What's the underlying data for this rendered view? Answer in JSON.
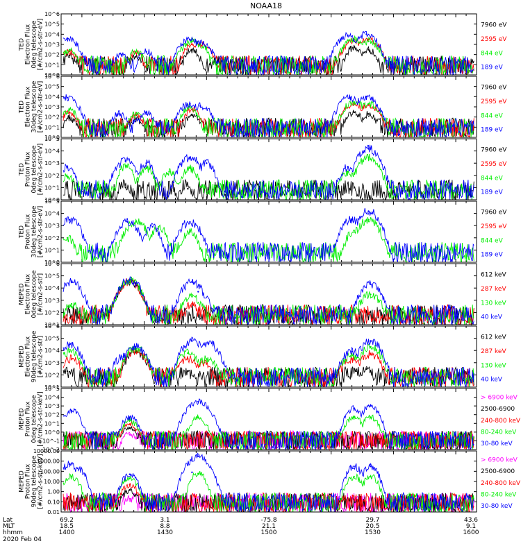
{
  "title": "NOAA18",
  "colors": {
    "black": "#000000",
    "blue": "#0000ff",
    "green": "#00ee00",
    "red": "#ff0000",
    "magenta": "#ff00ff"
  },
  "footer": {
    "date": "2020 Feb 04",
    "row_labels": [
      "Lat",
      "MLT",
      "hhmm"
    ],
    "columns": [
      {
        "lat": "69.2",
        "mlt": "18.5",
        "hhmm": "1400"
      },
      {
        "lat": "3.1",
        "mlt": "8.8",
        "hhmm": "1430"
      },
      {
        "lat": "-75.8",
        "mlt": "21.1",
        "hhmm": "1500"
      },
      {
        "lat": "29.7",
        "mlt": "20.5",
        "hhmm": "1530"
      },
      {
        "lat": "43.6",
        "mlt": "9.1",
        "hhmm": "1600"
      }
    ]
  },
  "chart_data": [
    {
      "type": "line",
      "ylabel": [
        "TED",
        "Electron Flux",
        "0deg telescope",
        "[#/cm2-s-str-eV]"
      ],
      "yscale": "log",
      "ylim": [
        1,
        1000000
      ],
      "tick_labels": [
        "10^6",
        "10^5",
        "10^4",
        "10^3",
        "10^2",
        "10^1",
        "10^0"
      ],
      "legend": [
        {
          "text": "7960 eV",
          "color": "black"
        },
        {
          "text": "2595 eV",
          "color": "red"
        },
        {
          "text": "844 eV",
          "color": "green"
        },
        {
          "text": "189 eV",
          "color": "blue"
        }
      ],
      "series": [
        {
          "name": "189 eV",
          "color": "blue",
          "peaks": [
            [
              1403,
              4000
            ],
            [
              1429,
              100
            ],
            [
              1441,
              200
            ],
            [
              1462,
              3000
            ],
            [
              1467,
              1500
            ],
            [
              1538,
              8000
            ],
            [
              1547,
              10000
            ]
          ]
        },
        {
          "name": "844 eV",
          "color": "green",
          "peaks": [
            [
              1404,
              300
            ],
            [
              1436,
              200
            ],
            [
              1463,
              2000
            ],
            [
              1467,
              1000
            ],
            [
              1541,
              3000
            ],
            [
              1548,
              2000
            ]
          ]
        },
        {
          "name": "2595 eV",
          "color": "red",
          "peaks": [
            [
              1404,
              200
            ],
            [
              1436,
              150
            ],
            [
              1463,
              1000
            ],
            [
              1467,
              1200
            ],
            [
              1541,
              2000
            ],
            [
              1548,
              3000
            ]
          ]
        },
        {
          "name": "7960 eV",
          "color": "black",
          "peaks": [
            [
              1404,
              80
            ],
            [
              1436,
              60
            ],
            [
              1463,
              300
            ],
            [
              1541,
              500
            ],
            [
              1548,
              300
            ]
          ]
        }
      ]
    },
    {
      "type": "line",
      "ylabel": [
        "TED",
        "Electron Flux",
        "30deg telescope",
        "[#/cm2-s-str-eV]"
      ],
      "yscale": "log",
      "ylim": [
        1,
        1000000
      ],
      "tick_labels": [
        "10^6",
        "10^5",
        "10^4",
        "10^3",
        "10^2",
        "10^1",
        "10^0"
      ],
      "legend": [
        {
          "text": "7960 eV",
          "color": "black"
        },
        {
          "text": "2595 eV",
          "color": "red"
        },
        {
          "text": "844 eV",
          "color": "green"
        },
        {
          "text": "189 eV",
          "color": "blue"
        }
      ],
      "series": [
        {
          "name": "189 eV",
          "color": "blue",
          "peaks": [
            [
              1403,
              8000
            ],
            [
              1428,
              200
            ],
            [
              1441,
              300
            ],
            [
              1462,
              2000
            ],
            [
              1467,
              1200
            ],
            [
              1539,
              8000
            ],
            [
              1547,
              10000
            ]
          ]
        },
        {
          "name": "844 eV",
          "color": "green",
          "peaks": [
            [
              1404,
              500
            ],
            [
              1436,
              200
            ],
            [
              1462,
              1000
            ],
            [
              1541,
              3000
            ],
            [
              1548,
              2000
            ]
          ]
        },
        {
          "name": "2595 eV",
          "color": "red",
          "peaks": [
            [
              1404,
              300
            ],
            [
              1436,
              150
            ],
            [
              1463,
              600
            ],
            [
              1541,
              2000
            ],
            [
              1548,
              1500
            ]
          ]
        },
        {
          "name": "7960 eV",
          "color": "black",
          "peaks": [
            [
              1404,
              80
            ],
            [
              1436,
              60
            ],
            [
              1463,
              150
            ],
            [
              1541,
              300
            ],
            [
              1548,
              200
            ]
          ]
        }
      ]
    },
    {
      "type": "line",
      "ylabel": [
        "TED",
        "Proton Flux",
        "0deg telescope",
        "[#/cm2-s-str-eV]"
      ],
      "yscale": "log",
      "ylim": [
        1,
        100000
      ],
      "tick_labels": [
        "10^5",
        "10^4",
        "10^3",
        "10^2",
        "10^1",
        "10^0"
      ],
      "legend": [
        {
          "text": "7960 eV",
          "color": "black"
        },
        {
          "text": "2595 eV",
          "color": "red"
        },
        {
          "text": "844 eV",
          "color": "green"
        },
        {
          "text": "189 eV",
          "color": "blue"
        }
      ],
      "series": [
        {
          "name": "189 eV",
          "color": "blue",
          "peaks": [
            [
              1403,
              500
            ],
            [
              1431,
              1500
            ],
            [
              1441,
              1000
            ],
            [
              1462,
              3000
            ],
            [
              1470,
              1000
            ],
            [
              1538,
              500
            ],
            [
              1548,
              15000
            ]
          ]
        },
        {
          "name": "844 eV",
          "color": "green",
          "peaks": [
            [
              1403,
              80
            ],
            [
              1431,
              600
            ],
            [
              1441,
              400
            ],
            [
              1452,
              200
            ],
            [
              1462,
              400
            ],
            [
              1538,
              200
            ],
            [
              1548,
              3000
            ]
          ]
        },
        {
          "name": "2595 eV",
          "color": "red",
          "peaks": []
        },
        {
          "name": "7960 eV",
          "color": "black",
          "peaks": [
            [
              1431,
              10
            ],
            [
              1461,
              8
            ]
          ]
        }
      ]
    },
    {
      "type": "line",
      "ylabel": [
        "TED",
        "Proton Flux",
        "30deg telescope",
        "[#/cm2-s-str-eV]"
      ],
      "yscale": "log",
      "ylim": [
        1,
        100000
      ],
      "tick_labels": [
        "10^5",
        "10^4",
        "10^3",
        "10^2",
        "10^1",
        "10^0"
      ],
      "legend": [
        {
          "text": "7960 eV",
          "color": "black"
        },
        {
          "text": "2595 eV",
          "color": "red"
        },
        {
          "text": "844 eV",
          "color": "green"
        },
        {
          "text": "189 eV",
          "color": "blue"
        }
      ],
      "series": [
        {
          "name": "189 eV",
          "color": "blue",
          "peaks": [
            [
              1404,
              3000
            ],
            [
              1432,
              2000
            ],
            [
              1444,
              800
            ],
            [
              1462,
              2000
            ],
            [
              1540,
              3000
            ],
            [
              1548,
              15000
            ]
          ]
        },
        {
          "name": "844 eV",
          "color": "green",
          "peaks": [
            [
              1403,
              100
            ],
            [
              1436,
              2000
            ],
            [
              1447,
              800
            ],
            [
              1462,
              300
            ],
            [
              1541,
              400
            ],
            [
              1548,
              3000
            ]
          ]
        },
        {
          "name": "2595 eV",
          "color": "red",
          "peaks": []
        },
        {
          "name": "7960 eV",
          "color": "black",
          "peaks": []
        }
      ]
    },
    {
      "type": "line",
      "ylabel": [
        "MEPED",
        "Electron Flux",
        "0deg telescope",
        "[#/cm2-s-str]"
      ],
      "yscale": "log",
      "ylim": [
        10,
        1000000
      ],
      "tick_labels": [
        "10^6",
        "10^5",
        "10^4",
        "10^3",
        "10^2",
        "10^1"
      ],
      "legend": [
        {
          "text": "612 keV",
          "color": "black"
        },
        {
          "text": "287 keV",
          "color": "red"
        },
        {
          "text": "130 keV",
          "color": "green"
        },
        {
          "text": "40 keV",
          "color": "blue"
        }
      ],
      "series": [
        {
          "name": "40 keV",
          "color": "blue",
          "peaks": [
            [
              1405,
              30000
            ],
            [
              1433,
              50000
            ],
            [
              1463,
              30000
            ],
            [
              1466,
              5000
            ],
            [
              1549,
              20000
            ]
          ]
        },
        {
          "name": "130 keV",
          "color": "green",
          "peaks": [
            [
              1405,
              500
            ],
            [
              1433,
              40000
            ],
            [
              1463,
              2000
            ],
            [
              1549,
              3000
            ]
          ]
        },
        {
          "name": "287 keV",
          "color": "red",
          "peaks": [
            [
              1433,
              35000
            ],
            [
              1463,
              500
            ]
          ]
        },
        {
          "name": "612 keV",
          "color": "black",
          "peaks": [
            [
              1433,
              30000
            ]
          ]
        }
      ]
    },
    {
      "type": "line",
      "ylabel": [
        "MEPED",
        "Electron Flux",
        "90deg telescope",
        "[#/cm2-s-str]"
      ],
      "yscale": "log",
      "ylim": [
        10,
        1000000
      ],
      "tick_labels": [
        "10^6",
        "10^5",
        "10^4",
        "10^3",
        "10^2",
        "10^1"
      ],
      "legend": [
        {
          "text": "612 keV",
          "color": "black"
        },
        {
          "text": "287 keV",
          "color": "red"
        },
        {
          "text": "130 keV",
          "color": "green"
        },
        {
          "text": "40 keV",
          "color": "blue"
        }
      ],
      "series": [
        {
          "name": "40 keV",
          "color": "blue",
          "peaks": [
            [
              1404,
              30000
            ],
            [
              1430,
              3000
            ],
            [
              1436,
              20000
            ],
            [
              1463,
              60000
            ],
            [
              1471,
              40000
            ],
            [
              1540,
              8000
            ],
            [
              1549,
              60000
            ]
          ]
        },
        {
          "name": "130 keV",
          "color": "green",
          "peaks": [
            [
              1404,
              8000
            ],
            [
              1436,
              15000
            ],
            [
              1461,
              6000
            ],
            [
              1470,
              2000
            ],
            [
              1540,
              4000
            ],
            [
              1549,
              20000
            ]
          ]
        },
        {
          "name": "287 keV",
          "color": "red",
          "peaks": [
            [
              1405,
              2000
            ],
            [
              1436,
              10000
            ],
            [
              1461,
              2000
            ],
            [
              1469,
              1000
            ],
            [
              1540,
              2000
            ],
            [
              1549,
              5000
            ]
          ]
        },
        {
          "name": "612 keV",
          "color": "black",
          "peaks": [
            [
              1403,
              200
            ],
            [
              1436,
              8000
            ],
            [
              1461,
              200
            ],
            [
              1542,
              200
            ],
            [
              1547,
              300
            ]
          ]
        }
      ]
    },
    {
      "type": "line",
      "ylabel": [
        "MEPED",
        "Proton Flux",
        "0deg telescope",
        "[#/cm2-s-str-keV]"
      ],
      "yscale": "log",
      "ylim": [
        0.01,
        100000
      ],
      "tick_labels": [
        "10^5",
        "10^4",
        "10^3",
        "10^2",
        "10^1",
        "10^0",
        "10^-1",
        "10^-2"
      ],
      "legend": [
        {
          "text": "> 6900 keV",
          "color": "magenta"
        },
        {
          "text": "2500-6900",
          "color": "black"
        },
        {
          "text": "240-800 keV",
          "color": "red"
        },
        {
          "text": "80-240 keV",
          "color": "green"
        },
        {
          "text": "30-80 keV",
          "color": "blue"
        }
      ],
      "series": [
        {
          "name": "30-80 keV",
          "color": "blue",
          "peaks": [
            [
              1405,
              300
            ],
            [
              1433,
              50
            ],
            [
              1466,
              3000
            ],
            [
              1541,
              500
            ],
            [
              1549,
              1000
            ]
          ]
        },
        {
          "name": "80-240 keV",
          "color": "green",
          "peaks": [
            [
              1433,
              20
            ],
            [
              1466,
              50
            ],
            [
              1541,
              50
            ],
            [
              1549,
              50
            ]
          ]
        },
        {
          "name": "240-800 keV",
          "color": "red",
          "peaks": [
            [
              1433,
              8
            ]
          ]
        },
        {
          "name": "2500-6900",
          "color": "black",
          "peaks": [
            [
              1433,
              3
            ]
          ]
        },
        {
          "name": "> 6900 keV",
          "color": "magenta",
          "peaks": [
            [
              1433,
              0.5
            ]
          ]
        }
      ]
    },
    {
      "type": "line",
      "ylabel": [
        "MEPED",
        "Proton Flux",
        "90deg telescope",
        "[#/cm2-s-str-keV]"
      ],
      "yscale": "log",
      "ylim": [
        0.01,
        10000
      ],
      "tick_labels": [
        "10000.00",
        "1000.00",
        "100.00",
        "10.00",
        "1.00",
        "0.10",
        "0.01"
      ],
      "legend": [
        {
          "text": "> 6900 keV",
          "color": "magenta"
        },
        {
          "text": "2500-6900",
          "color": "black"
        },
        {
          "text": "240-800 keV",
          "color": "red"
        },
        {
          "text": "80-240 keV",
          "color": "green"
        },
        {
          "text": "30-80 keV",
          "color": "blue"
        }
      ],
      "series": [
        {
          "name": "30-80 keV",
          "color": "blue",
          "peaks": [
            [
              1404,
              500
            ],
            [
              1408,
              200
            ],
            [
              1433,
              50
            ],
            [
              1463,
              80
            ],
            [
              1466,
              3000
            ],
            [
              1541,
              300
            ],
            [
              1549,
              300
            ]
          ]
        },
        {
          "name": "80-240 keV",
          "color": "green",
          "peaks": [
            [
              1405,
              30
            ],
            [
              1433,
              20
            ],
            [
              1466,
              60
            ],
            [
              1541,
              30
            ],
            [
              1549,
              30
            ]
          ]
        },
        {
          "name": "240-800 keV",
          "color": "red",
          "peaks": [
            [
              1433,
              5
            ]
          ]
        },
        {
          "name": "2500-6900",
          "color": "black",
          "peaks": [
            [
              1433,
              1.5
            ]
          ]
        },
        {
          "name": "> 6900 keV",
          "color": "magenta",
          "peaks": [
            [
              1433,
              0.2
            ]
          ]
        }
      ]
    }
  ]
}
